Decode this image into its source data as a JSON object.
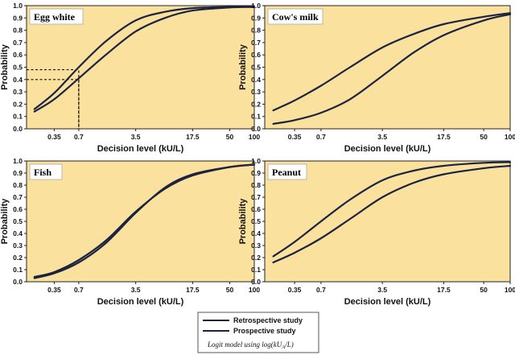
{
  "chart_data": [
    {
      "type": "line",
      "title": "Egg white",
      "xlabel": "Decision level (kU/L)",
      "ylabel": "Probability",
      "x": [
        0.2,
        0.35,
        0.7,
        1.5,
        3.5,
        8,
        17.5,
        50,
        100
      ],
      "xticks": [
        "0.35",
        "0.7",
        "3.5",
        "17.5",
        "50",
        "100"
      ],
      "ylim": [
        0,
        1
      ],
      "yticks": [
        "0.0",
        "0.1",
        "0.2",
        "0.3",
        "0.4",
        "0.5",
        "0.6",
        "0.7",
        "0.8",
        "0.9",
        "1.0"
      ],
      "series": [
        {
          "name": "Retrospective study",
          "values": [
            0.16,
            0.29,
            0.5,
            0.71,
            0.88,
            0.95,
            0.98,
            0.99,
            0.99
          ]
        },
        {
          "name": "Prospective study",
          "values": [
            0.14,
            0.24,
            0.41,
            0.6,
            0.79,
            0.9,
            0.96,
            0.985,
            0.99
          ]
        }
      ],
      "annotations": [
        {
          "x": 0.7,
          "y": 0.48,
          "style": "dashed guide"
        },
        {
          "x": 0.7,
          "y": 0.4,
          "style": "dashed guide"
        }
      ]
    },
    {
      "type": "line",
      "title": "Cow's milk",
      "xlabel": "Decision level (kU/L)",
      "ylabel": "Probability",
      "x": [
        0.2,
        0.35,
        0.7,
        1.5,
        3.5,
        8,
        17.5,
        50,
        100
      ],
      "xticks": [
        "0.35",
        "0.7",
        "3.5",
        "17.5",
        "50",
        "100"
      ],
      "ylim": [
        0,
        1
      ],
      "yticks": [
        "0.0",
        "0.1",
        "0.2",
        "0.3",
        "0.4",
        "0.5",
        "0.6",
        "0.7",
        "0.8",
        "0.9",
        "1.0"
      ],
      "series": [
        {
          "name": "Retrospective study",
          "values": [
            0.15,
            0.23,
            0.35,
            0.5,
            0.66,
            0.77,
            0.85,
            0.91,
            0.94
          ]
        },
        {
          "name": "Prospective study",
          "values": [
            0.04,
            0.07,
            0.13,
            0.24,
            0.43,
            0.62,
            0.76,
            0.88,
            0.93
          ]
        }
      ]
    },
    {
      "type": "line",
      "title": "Fish",
      "xlabel": "Decision level (kU/L)",
      "ylabel": "Probability",
      "x": [
        0.2,
        0.35,
        0.7,
        1.5,
        3.5,
        8,
        17.5,
        50,
        100
      ],
      "xticks": [
        "0.35",
        "0.7",
        "3.5",
        "17.5",
        "50",
        "100"
      ],
      "ylim": [
        0,
        1
      ],
      "yticks": [
        "0.0",
        "0.1",
        "0.2",
        "0.3",
        "0.4",
        "0.5",
        "0.6",
        "0.7",
        "0.8",
        "0.9",
        "1.0"
      ],
      "series": [
        {
          "name": "Retrospective study",
          "values": [
            0.04,
            0.08,
            0.18,
            0.34,
            0.58,
            0.77,
            0.88,
            0.95,
            0.97
          ]
        },
        {
          "name": "Prospective study",
          "values": [
            0.03,
            0.07,
            0.16,
            0.32,
            0.57,
            0.78,
            0.89,
            0.95,
            0.97
          ]
        }
      ]
    },
    {
      "type": "line",
      "title": "Peanut",
      "xlabel": "Decision level (kU/L)",
      "ylabel": "Probability",
      "x": [
        0.2,
        0.35,
        0.7,
        1.5,
        3.5,
        8,
        17.5,
        50,
        100
      ],
      "xticks": [
        "0.35",
        "0.7",
        "3.5",
        "17.5",
        "50",
        "100"
      ],
      "ylim": [
        0,
        1
      ],
      "yticks": [
        "0.0",
        "0.1",
        "0.2",
        "0.3",
        "0.4",
        "0.5",
        "0.6",
        "0.7",
        "0.8",
        "0.9",
        "1.0"
      ],
      "series": [
        {
          "name": "Retrospective study",
          "values": [
            0.21,
            0.33,
            0.5,
            0.68,
            0.84,
            0.92,
            0.96,
            0.985,
            0.99
          ]
        },
        {
          "name": "Prospective study",
          "values": [
            0.16,
            0.24,
            0.36,
            0.52,
            0.7,
            0.82,
            0.89,
            0.94,
            0.96
          ]
        }
      ]
    }
  ],
  "legend": {
    "entries": [
      "Retrospective study",
      "Prospective study"
    ],
    "note_prefix": "Logit model using log(kU",
    "note_sub": "A",
    "note_suffix": "/L)"
  },
  "colors": {
    "plot_background": "#fae19e",
    "line": "#1c2340"
  }
}
